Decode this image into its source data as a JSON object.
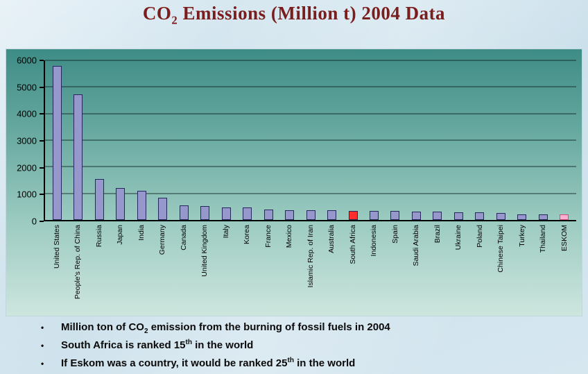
{
  "title": {
    "pre": "CO",
    "sub": "2",
    "post": " Emissions (Million t) 2004 Data"
  },
  "chart_data": {
    "type": "bar",
    "title": "CO2 Emissions (Million t) 2004 Data",
    "xlabel": "",
    "ylabel": "",
    "ylim": [
      0,
      6000
    ],
    "yticks": [
      0,
      1000,
      2000,
      3000,
      4000,
      5000,
      6000
    ],
    "grid": true,
    "legend": false,
    "categories": [
      "United States",
      "People's Rep. of China",
      "Russia",
      "Japan",
      "India",
      "Germany",
      "Canada",
      "United Kingdom",
      "Italy",
      "Korea",
      "France",
      "Mexico",
      "Islamic Rep. of Iran",
      "Australia",
      "South Africa",
      "Indonesia",
      "Spain",
      "Saudi Arabia",
      "Brazil",
      "Ukraine",
      "Poland",
      "Chinese Taipei",
      "Turkey",
      "Thailand",
      "ESKOM"
    ],
    "values": [
      5800,
      4730,
      1529,
      1215,
      1103,
      849,
      551,
      537,
      475,
      465,
      390,
      380,
      372,
      360,
      343,
      336,
      330,
      326,
      323,
      302,
      296,
      255,
      212,
      201,
      200
    ],
    "bar_fill": "#9697CB",
    "bar_border": "#26265E",
    "highlight_bars": {
      "South Africa": {
        "fill": "#FF2E2E",
        "border": "#26265E"
      },
      "ESKOM": {
        "fill": "#FFAFD0",
        "border": "#D04A86"
      }
    }
  },
  "bullet_marker": "•",
  "bullets": [
    {
      "pre": "Million ton of CO",
      "sub": "2",
      "post": " emission from the burning of fossil fuels in 2004"
    },
    {
      "pre": "South Africa is ranked 15",
      "sup": "th",
      "post": " in the world"
    },
    {
      "pre": "If Eskom was a country, it would be ranked 25",
      "sup": "th",
      "post": " in the world"
    }
  ]
}
